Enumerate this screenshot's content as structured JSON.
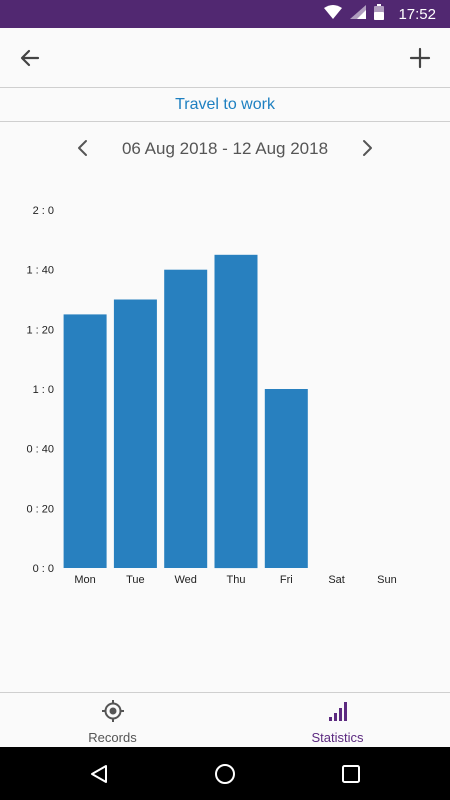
{
  "status_bar": {
    "time": "17:52",
    "icons": [
      "wifi-icon",
      "signal-icon",
      "battery-icon"
    ],
    "background": "#512871"
  },
  "app_bar": {
    "back_icon": "arrow-left-icon",
    "add_icon": "plus-icon"
  },
  "subtitle": "Travel to work",
  "date_nav": {
    "range": "06 Aug 2018 - 12 Aug 2018",
    "prev_icon": "chevron-left-icon",
    "next_icon": "chevron-right-icon"
  },
  "chart_data": {
    "type": "bar",
    "categories": [
      "Mon",
      "Tue",
      "Wed",
      "Thu",
      "Fri",
      "Sat",
      "Sun"
    ],
    "values": [
      85,
      90,
      100,
      105,
      60,
      0,
      0
    ],
    "value_unit": "minutes",
    "y_ticks": [
      {
        "value": 0,
        "label": "0 : 0"
      },
      {
        "value": 20,
        "label": "0 : 20"
      },
      {
        "value": 40,
        "label": "0 : 40"
      },
      {
        "value": 60,
        "label": "1 : 0"
      },
      {
        "value": 80,
        "label": "1 : 20"
      },
      {
        "value": 100,
        "label": "1 : 40"
      },
      {
        "value": 120,
        "label": "2 : 0"
      }
    ],
    "ylim": [
      0,
      120
    ],
    "grid": false,
    "bar_color": "#2880bf"
  },
  "bottom_nav": {
    "items": [
      {
        "label": "Records",
        "icon": "target-icon",
        "active": false
      },
      {
        "label": "Statistics",
        "icon": "bar-chart-icon",
        "active": true
      }
    ],
    "active_color": "#5c2a80"
  },
  "system_nav": {
    "icons": [
      "back-triangle-icon",
      "home-circle-icon",
      "recents-square-icon"
    ]
  }
}
